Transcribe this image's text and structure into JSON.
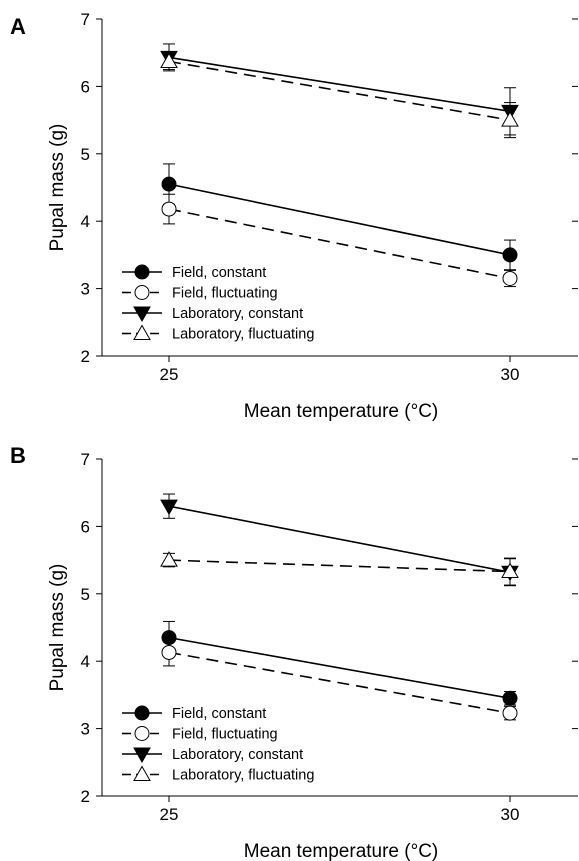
{
  "chart_data": [
    {
      "type": "line",
      "panel_label": "A",
      "xlabel": "Mean temperature (°C)",
      "ylabel": "Pupal mass (g)",
      "x": [
        25,
        30
      ],
      "x_ticks": [
        "25",
        "30"
      ],
      "ylim": [
        2,
        7
      ],
      "y_ticks": [
        "2",
        "3",
        "4",
        "5",
        "6",
        "7"
      ],
      "legend_position": "bottom-left",
      "series": [
        {
          "name": "Field, constant",
          "marker": "circle-filled",
          "line": "solid",
          "values": [
            4.55,
            3.5
          ],
          "errors": [
            0.3,
            0.22
          ]
        },
        {
          "name": "Field, fluctuating",
          "marker": "circle-open",
          "line": "dashed",
          "values": [
            4.18,
            3.15
          ],
          "errors": [
            0.22,
            0.12
          ]
        },
        {
          "name": "Laboratory, constant",
          "marker": "triangle-down-filled",
          "line": "solid",
          "values": [
            6.43,
            5.63
          ],
          "errors": [
            0.2,
            0.35
          ]
        },
        {
          "name": "Laboratory, fluctuating",
          "marker": "triangle-up-open",
          "line": "dashed",
          "values": [
            6.37,
            5.5
          ],
          "errors": [
            0.12,
            0.26
          ]
        }
      ]
    },
    {
      "type": "line",
      "panel_label": "B",
      "xlabel": "Mean temperature (°C)",
      "ylabel": "Pupal mass (g)",
      "x": [
        25,
        30
      ],
      "x_ticks": [
        "25",
        "30"
      ],
      "ylim": [
        2,
        7
      ],
      "y_ticks": [
        "2",
        "3",
        "4",
        "5",
        "6",
        "7"
      ],
      "legend_position": "bottom-left",
      "series": [
        {
          "name": "Field, constant",
          "marker": "circle-filled",
          "line": "solid",
          "values": [
            4.35,
            3.45
          ],
          "errors": [
            0.24,
            0.1
          ]
        },
        {
          "name": "Field, fluctuating",
          "marker": "circle-open",
          "line": "dashed",
          "values": [
            4.13,
            3.23
          ],
          "errors": [
            0.2,
            0.1
          ]
        },
        {
          "name": "Laboratory, constant",
          "marker": "triangle-down-filled",
          "line": "solid",
          "values": [
            6.3,
            5.32
          ],
          "errors": [
            0.18,
            0.2
          ]
        },
        {
          "name": "Laboratory, fluctuating",
          "marker": "triangle-up-open",
          "line": "dashed",
          "values": [
            5.5,
            5.33
          ],
          "errors": [
            0.1,
            0.2
          ]
        }
      ]
    }
  ]
}
